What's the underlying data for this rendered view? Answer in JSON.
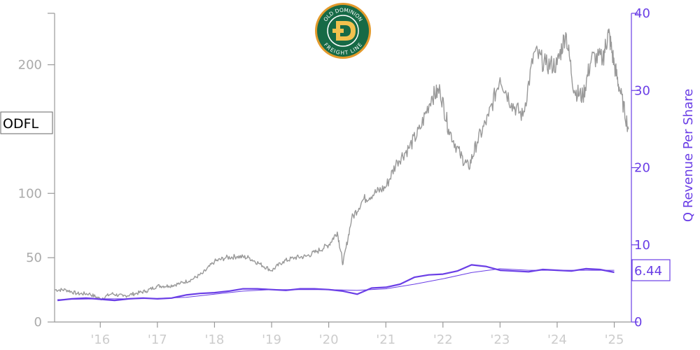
{
  "chart_data": {
    "type": "line",
    "ticker_label": "ODFL",
    "logo_text": {
      "top": "OLD DOMINION",
      "bottom": "FREIGHT LINE"
    },
    "left_axis": {
      "range": [
        0,
        240
      ],
      "ticks": [
        0,
        50,
        100,
        200
      ],
      "tick_labels": [
        "0",
        "50",
        "100",
        "200"
      ]
    },
    "right_axis": {
      "label": "Q Revenue Per Share",
      "range": [
        0,
        40
      ],
      "ticks": [
        0,
        10,
        20,
        30,
        40
      ],
      "tick_labels": [
        "0",
        "10",
        "20",
        "30",
        "40"
      ]
    },
    "x_axis": {
      "range": [
        2015.2,
        2025.3
      ],
      "ticks": [
        2016,
        2017,
        2018,
        2019,
        2020,
        2021,
        2022,
        2023,
        2024,
        2025
      ],
      "tick_labels": [
        "'16",
        "'17",
        "'18",
        "'19",
        "'20",
        "'21",
        "'22",
        "'23",
        "'24",
        "'25"
      ]
    },
    "latest_value_label": "6.44",
    "grid": false,
    "series": [
      {
        "axis": "left",
        "color": "#999999",
        "x": [
          2015.2,
          2015.4,
          2015.6,
          2015.8,
          2016.0,
          2016.2,
          2016.4,
          2016.6,
          2016.8,
          2017.0,
          2017.2,
          2017.4,
          2017.6,
          2017.8,
          2018.0,
          2018.2,
          2018.4,
          2018.6,
          2018.8,
          2019.0,
          2019.2,
          2019.4,
          2019.6,
          2019.8,
          2020.0,
          2020.15,
          2020.25,
          2020.4,
          2020.6,
          2020.8,
          2021.0,
          2021.2,
          2021.4,
          2021.6,
          2021.8,
          2021.95,
          2022.1,
          2022.3,
          2022.45,
          2022.6,
          2022.8,
          2023.0,
          2023.2,
          2023.4,
          2023.6,
          2023.8,
          2024.0,
          2024.15,
          2024.3,
          2024.45,
          2024.6,
          2024.8,
          2024.9,
          2025.0,
          2025.1,
          2025.25
        ],
        "values": [
          25,
          25,
          22,
          22,
          18,
          22,
          20,
          22,
          24,
          28,
          28,
          30,
          33,
          38,
          47,
          50,
          51,
          50,
          45,
          40,
          47,
          50,
          51,
          55,
          60,
          70,
          45,
          80,
          95,
          100,
          105,
          125,
          135,
          150,
          175,
          180,
          150,
          130,
          120,
          140,
          160,
          190,
          170,
          160,
          210,
          200,
          200,
          225,
          180,
          175,
          205,
          205,
          225,
          200,
          180,
          150
        ]
      },
      {
        "axis": "right",
        "name": "Q Revenue Per Share",
        "color": "#6a3ee6",
        "x": [
          2015.25,
          2015.5,
          2015.75,
          2016.0,
          2016.25,
          2016.5,
          2016.75,
          2017.0,
          2017.25,
          2017.5,
          2017.75,
          2018.0,
          2018.25,
          2018.5,
          2018.75,
          2019.0,
          2019.25,
          2019.5,
          2019.75,
          2020.0,
          2020.25,
          2020.5,
          2020.75,
          2021.0,
          2021.25,
          2021.5,
          2021.75,
          2022.0,
          2022.25,
          2022.5,
          2022.75,
          2023.0,
          2023.25,
          2023.5,
          2023.75,
          2024.0,
          2024.25,
          2024.5,
          2024.75,
          2025.0
        ],
        "values": [
          2.8,
          3.0,
          3.1,
          2.95,
          2.8,
          3.0,
          3.1,
          3.0,
          3.1,
          3.5,
          3.7,
          3.8,
          4.0,
          4.3,
          4.3,
          4.2,
          4.1,
          4.3,
          4.3,
          4.2,
          4.0,
          3.6,
          4.4,
          4.5,
          4.9,
          5.8,
          6.1,
          6.2,
          6.6,
          7.4,
          7.2,
          6.7,
          6.6,
          6.5,
          6.8,
          6.7,
          6.6,
          6.9,
          6.8,
          6.44
        ]
      },
      {
        "axis": "right",
        "color": "#6a3ee6",
        "x": [
          2015.25,
          2016.0,
          2016.5,
          2017.0,
          2017.5,
          2018.0,
          2018.5,
          2019.0,
          2019.5,
          2020.0,
          2020.5,
          2021.0,
          2021.5,
          2022.0,
          2022.5,
          2023.0,
          2023.5,
          2024.0,
          2024.5,
          2025.0
        ],
        "values": [
          2.9,
          3.0,
          3.0,
          3.05,
          3.2,
          3.6,
          4.0,
          4.2,
          4.2,
          4.2,
          4.1,
          4.3,
          4.9,
          5.6,
          6.4,
          6.9,
          6.7,
          6.7,
          6.7,
          6.7
        ]
      }
    ]
  }
}
